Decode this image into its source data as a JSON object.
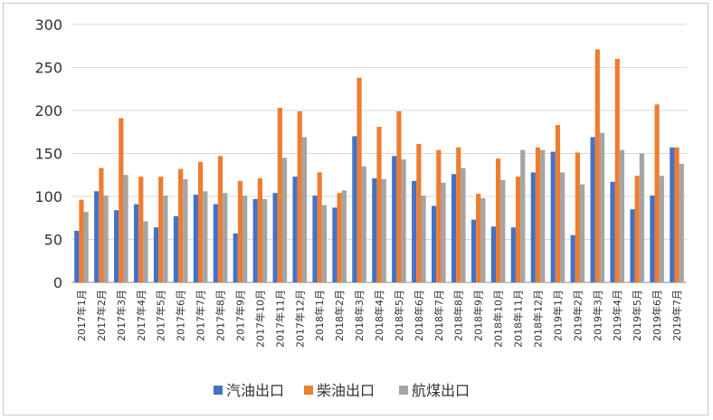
{
  "chart_data": {
    "type": "bar",
    "title": "",
    "xlabel": "",
    "ylabel": "",
    "ylim": [
      0,
      300
    ],
    "yticks": [
      0,
      50,
      100,
      150,
      200,
      250,
      300
    ],
    "grid": "horizontal",
    "legend_position": "bottom",
    "categories": [
      "2017年1月",
      "2017年2月",
      "2017年3月",
      "2017年4月",
      "2017年5月",
      "2017年6月",
      "2017年7月",
      "2017年8月",
      "2017年9月",
      "2017年10月",
      "2017年11月",
      "2017年12月",
      "2018年1月",
      "2018年2月",
      "2018年3月",
      "2018年4月",
      "2018年5月",
      "2018年6月",
      "2018年7月",
      "2018年8月",
      "2018年9月",
      "2018年10月",
      "2018年11月",
      "2018年12月",
      "2019年1月",
      "2019年2月",
      "2019年3月",
      "2019年4月",
      "2019年5月",
      "2019年6月",
      "2019年7月"
    ],
    "series": [
      {
        "name": "汽油出口",
        "color": "#4472C4",
        "values": [
          60,
          106,
          84,
          91,
          64,
          77,
          102,
          91,
          57,
          97,
          104,
          123,
          101,
          87,
          170,
          121,
          147,
          118,
          89,
          126,
          73,
          65,
          64,
          128,
          152,
          55,
          169,
          117,
          85,
          101,
          157
        ]
      },
      {
        "name": "柴油出口",
        "color": "#ED7D31",
        "values": [
          96,
          133,
          191,
          123,
          123,
          132,
          140,
          147,
          118,
          121,
          203,
          199,
          128,
          104,
          238,
          181,
          199,
          161,
          154,
          157,
          103,
          144,
          123,
          157,
          183,
          151,
          271,
          260,
          124,
          207,
          157
        ]
      },
      {
        "name": "航煤出口",
        "color": "#A5A5A5",
        "values": [
          82,
          101,
          125,
          71,
          101,
          120,
          106,
          104,
          101,
          97,
          145,
          169,
          90,
          107,
          135,
          120,
          143,
          101,
          116,
          133,
          98,
          119,
          154,
          154,
          128,
          114,
          174,
          154,
          150,
          124,
          138
        ]
      }
    ]
  }
}
